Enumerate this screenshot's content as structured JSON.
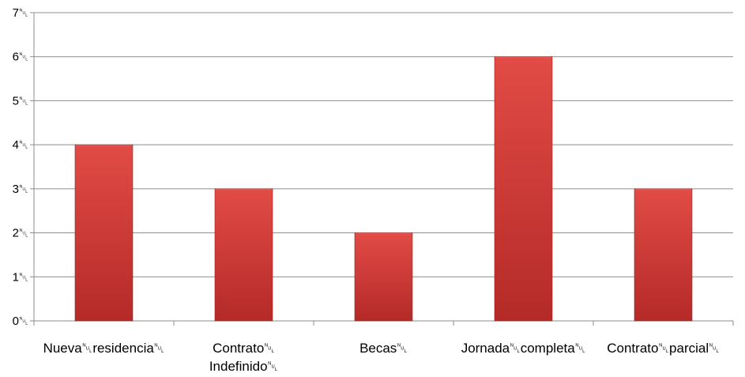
{
  "chart_data": {
    "type": "bar",
    "categories": [
      [
        "Nueva␀residencia␀"
      ],
      [
        "Contrato␀",
        "Indefinido␀"
      ],
      [
        "Becas␀"
      ],
      [
        "Jornada␀completa␀"
      ],
      [
        "Contrato␀parcial␀"
      ]
    ],
    "values": [
      4,
      3,
      2,
      6,
      3
    ],
    "y_tick_labels": [
      "0␀",
      "1␀",
      "2␀",
      "3␀",
      "4␀",
      "5␀",
      "6␀",
      "7␀"
    ],
    "ylim": [
      0,
      7
    ],
    "grid": true,
    "legend": "none",
    "bar_color": "#c9302c",
    "bar_highlight": "#e05550",
    "grid_color": "#8c8c8c"
  }
}
